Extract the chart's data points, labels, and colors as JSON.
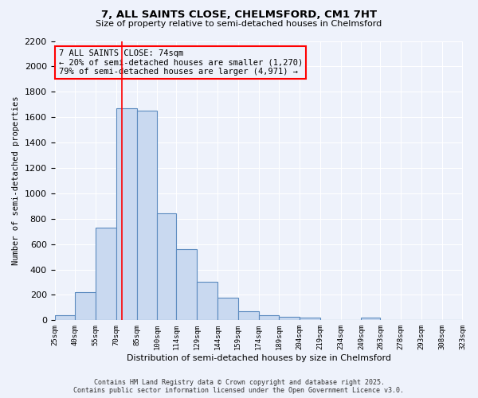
{
  "title1": "7, ALL SAINTS CLOSE, CHELMSFORD, CM1 7HT",
  "title2": "Size of property relative to semi-detached houses in Chelmsford",
  "xlabel": "Distribution of semi-detached houses by size in Chelmsford",
  "ylabel": "Number of semi-detached properties",
  "bin_edges": [
    25,
    40,
    55,
    70,
    85,
    100,
    114,
    129,
    144,
    159,
    174,
    189,
    204,
    219,
    234,
    249,
    263,
    278,
    293,
    308,
    323
  ],
  "bar_heights": [
    40,
    220,
    730,
    1670,
    1650,
    840,
    560,
    300,
    180,
    70,
    40,
    30,
    20,
    0,
    0,
    20,
    0,
    0,
    0,
    0
  ],
  "bar_color": "#c9d9f0",
  "bar_edge_color": "#5b8abf",
  "red_line_x": 74,
  "annotation_line1": "7 ALL SAINTS CLOSE: 74sqm",
  "annotation_line2": "← 20% of semi-detached houses are smaller (1,270)",
  "annotation_line3": "79% of semi-detached houses are larger (4,971) →",
  "ylim": [
    0,
    2200
  ],
  "yticks": [
    0,
    200,
    400,
    600,
    800,
    1000,
    1200,
    1400,
    1600,
    1800,
    2000,
    2200
  ],
  "background_color": "#eef2fb",
  "grid_color": "#ffffff",
  "footer_line1": "Contains HM Land Registry data © Crown copyright and database right 2025.",
  "footer_line2": "Contains public sector information licensed under the Open Government Licence v3.0."
}
